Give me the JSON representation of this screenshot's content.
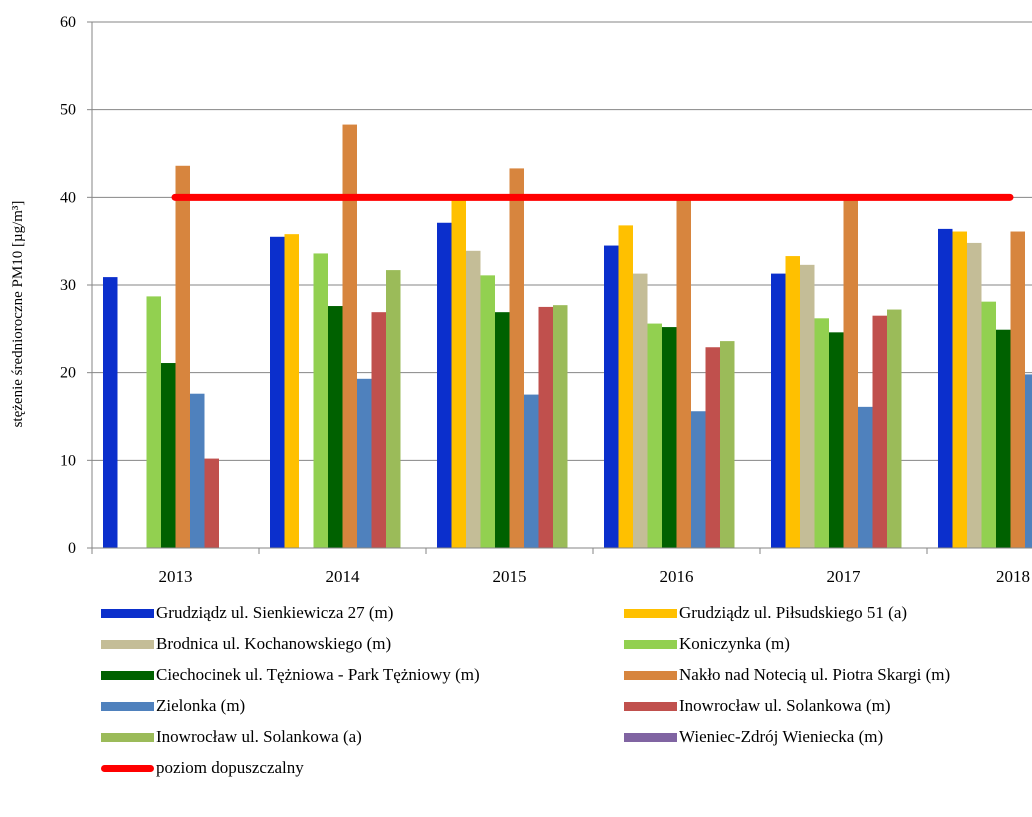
{
  "chart_data": {
    "type": "bar",
    "title": "",
    "xlabel": "",
    "ylabel": "stężenie średnioroczne PM10 [µg/m³]",
    "ylim": [
      0,
      60
    ],
    "yticks": [
      "0",
      "10",
      "20",
      "30",
      "40",
      "50",
      "60"
    ],
    "grid": true,
    "legend_position": "bottom",
    "categories": [
      "2013",
      "2014",
      "2015",
      "2016",
      "2017",
      "2018"
    ],
    "series": [
      {
        "name": "Grudziądz ul. Sienkiewicza 27 (m)",
        "color": "#0b2fcc",
        "values": [
          30.9,
          35.5,
          37.1,
          34.5,
          31.3,
          36.4
        ]
      },
      {
        "name": "Grudziądz ul. Piłsudskiego 51 (a)",
        "color": "#ffc000",
        "values": [
          null,
          35.8,
          40.0,
          36.8,
          33.3,
          36.1
        ]
      },
      {
        "name": "Brodnica ul. Kochanowskiego (m)",
        "color": "#c4bd97",
        "values": [
          null,
          null,
          33.9,
          31.3,
          32.3,
          34.8
        ]
      },
      {
        "name": "Koniczynka  (m)",
        "color": "#92d050",
        "values": [
          28.7,
          33.6,
          31.1,
          25.6,
          26.2,
          28.1
        ]
      },
      {
        "name": "Ciechocinek ul. Tężniowa - Park Tężniowy (m)",
        "color": "#006100",
        "values": [
          21.1,
          27.6,
          26.9,
          25.2,
          24.6,
          24.9
        ]
      },
      {
        "name": "Nakło nad Notecią ul. Piotra Skargi (m)",
        "color": "#d7853e",
        "values": [
          43.6,
          48.3,
          43.3,
          39.9,
          40.0,
          36.1
        ]
      },
      {
        "name": "Zielonka (m)",
        "color": "#4f81bd",
        "values": [
          17.6,
          19.3,
          17.5,
          15.6,
          16.1,
          19.8
        ]
      },
      {
        "name": "Inowrocław ul. Solankowa (m)",
        "color": "#c0504d",
        "values": [
          10.2,
          26.9,
          27.5,
          22.9,
          26.5,
          null
        ]
      },
      {
        "name": "Inowrocław ul. Solankowa (a)",
        "color": "#9bbb59",
        "values": [
          null,
          31.7,
          27.7,
          23.6,
          27.2,
          null
        ]
      },
      {
        "name": "Wieniec-Zdrój Wieniecka (m)",
        "color": "#8064a2",
        "values": [
          null,
          null,
          null,
          null,
          null,
          null
        ]
      }
    ],
    "threshold": {
      "name": "poziom dopuszczalny",
      "value": 40,
      "color": "#ff0000"
    }
  }
}
